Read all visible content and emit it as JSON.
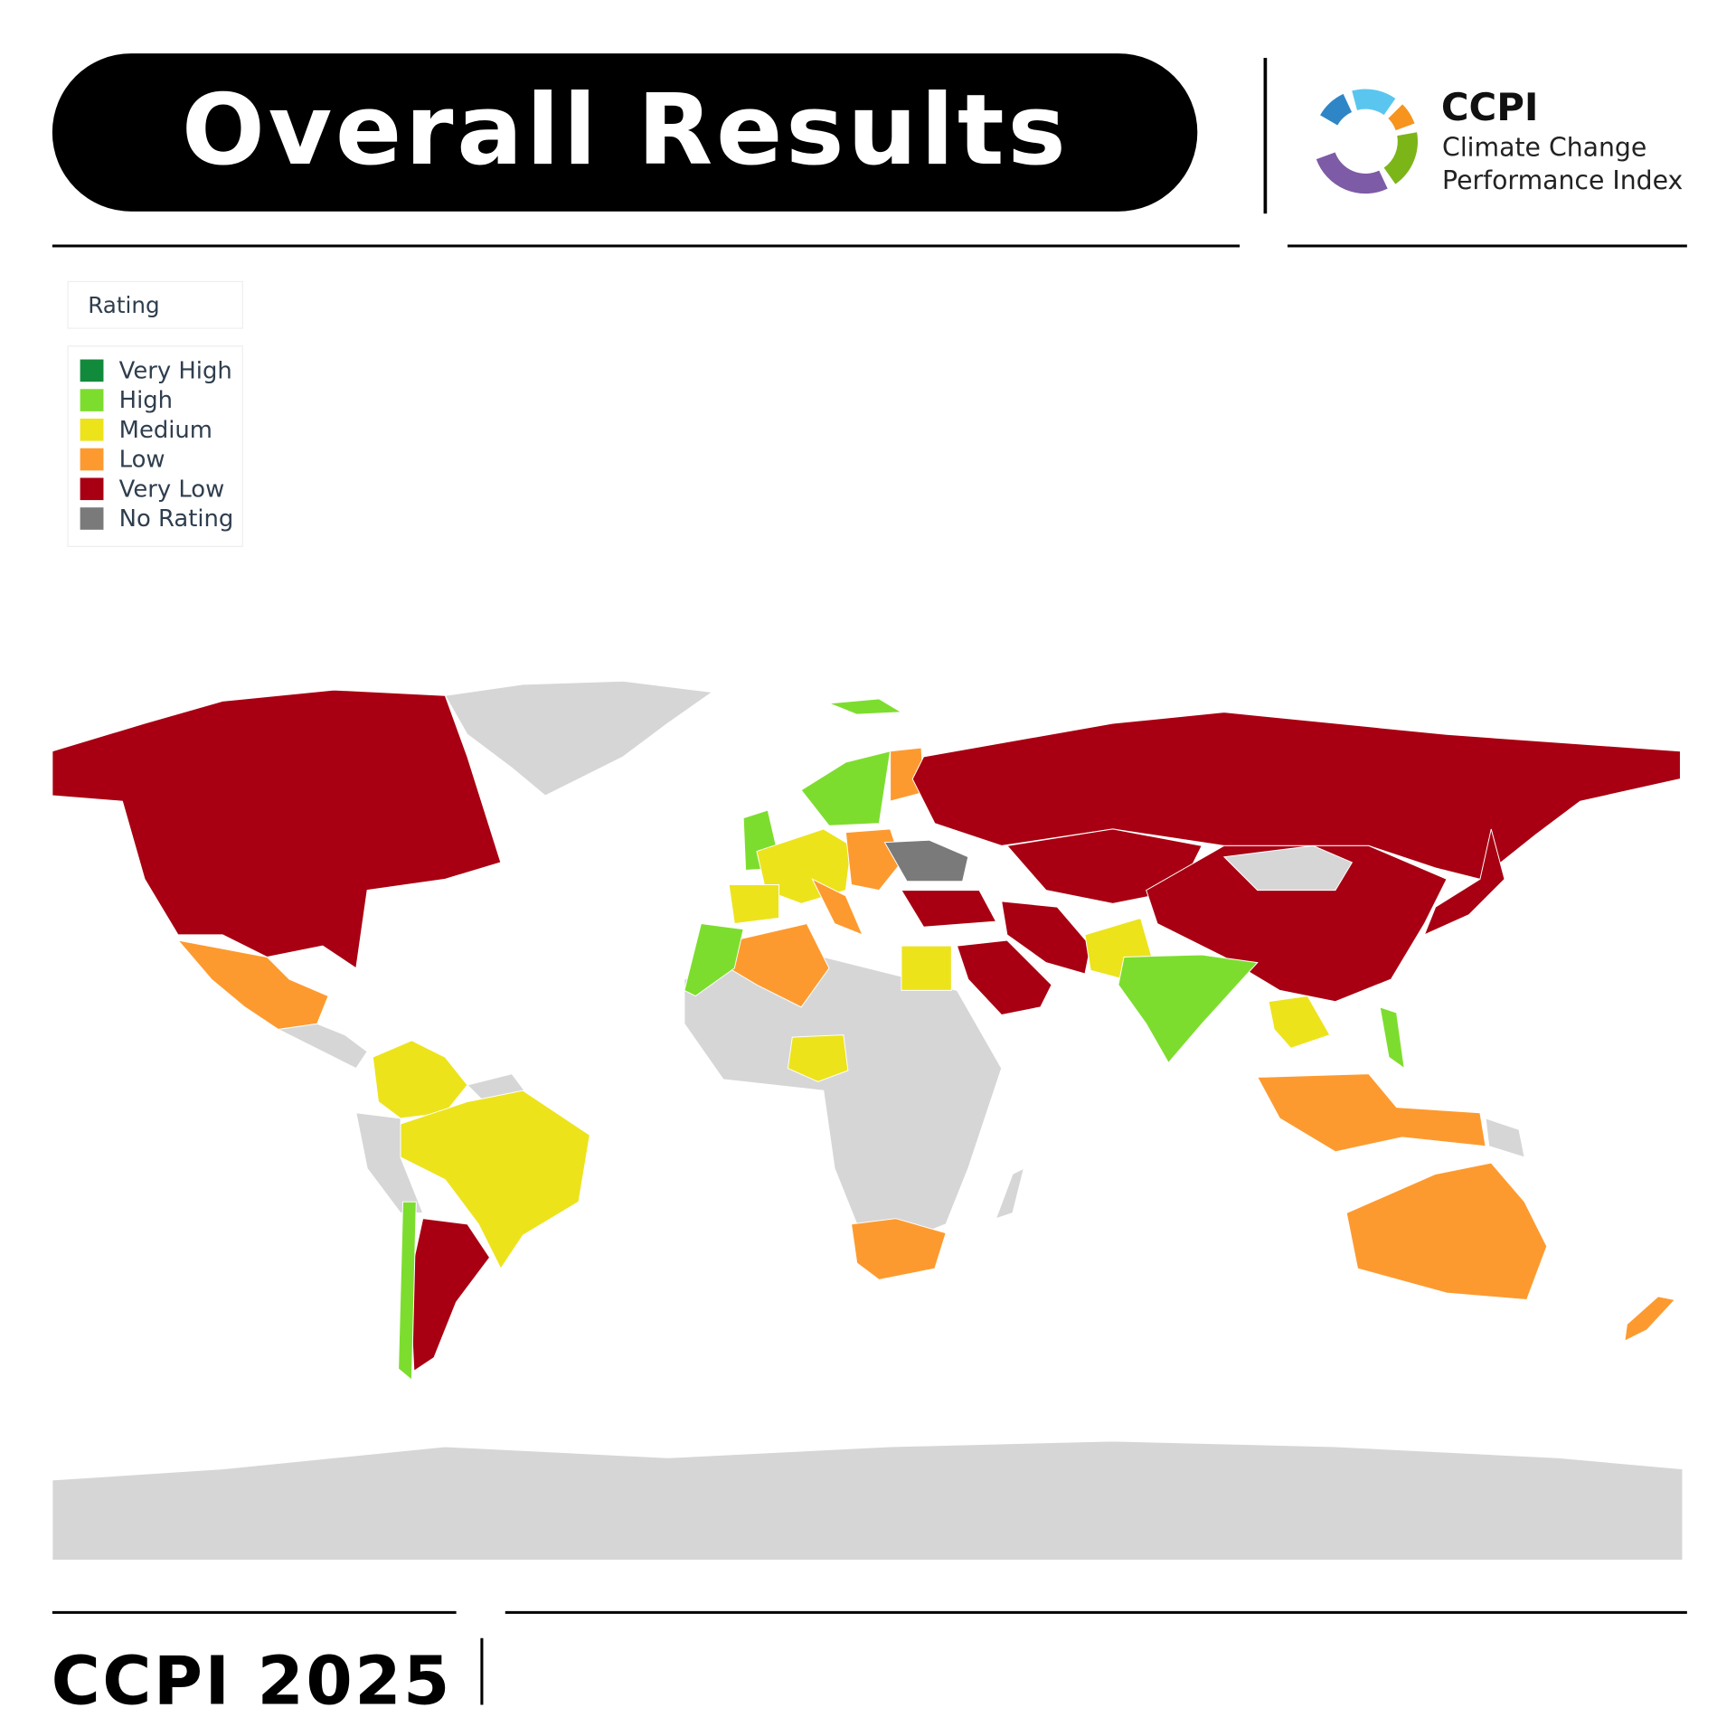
{
  "header": {
    "title": "Overall Results"
  },
  "logo": {
    "acronym": "CCPI",
    "name_line1": "Climate Change",
    "name_line2": "Performance Index"
  },
  "legend": {
    "title": "Rating",
    "items": [
      {
        "label": "Very High",
        "color": "#128a3c"
      },
      {
        "label": "High",
        "color": "#7ddd2e"
      },
      {
        "label": "Medium",
        "color": "#ece31b"
      },
      {
        "label": "Low",
        "color": "#fd9a2f"
      },
      {
        "label": "Very Low",
        "color": "#a80012"
      },
      {
        "label": "No Rating",
        "color": "#7a7a7a"
      }
    ]
  },
  "footer": {
    "label": "CCPI 2025"
  }
}
